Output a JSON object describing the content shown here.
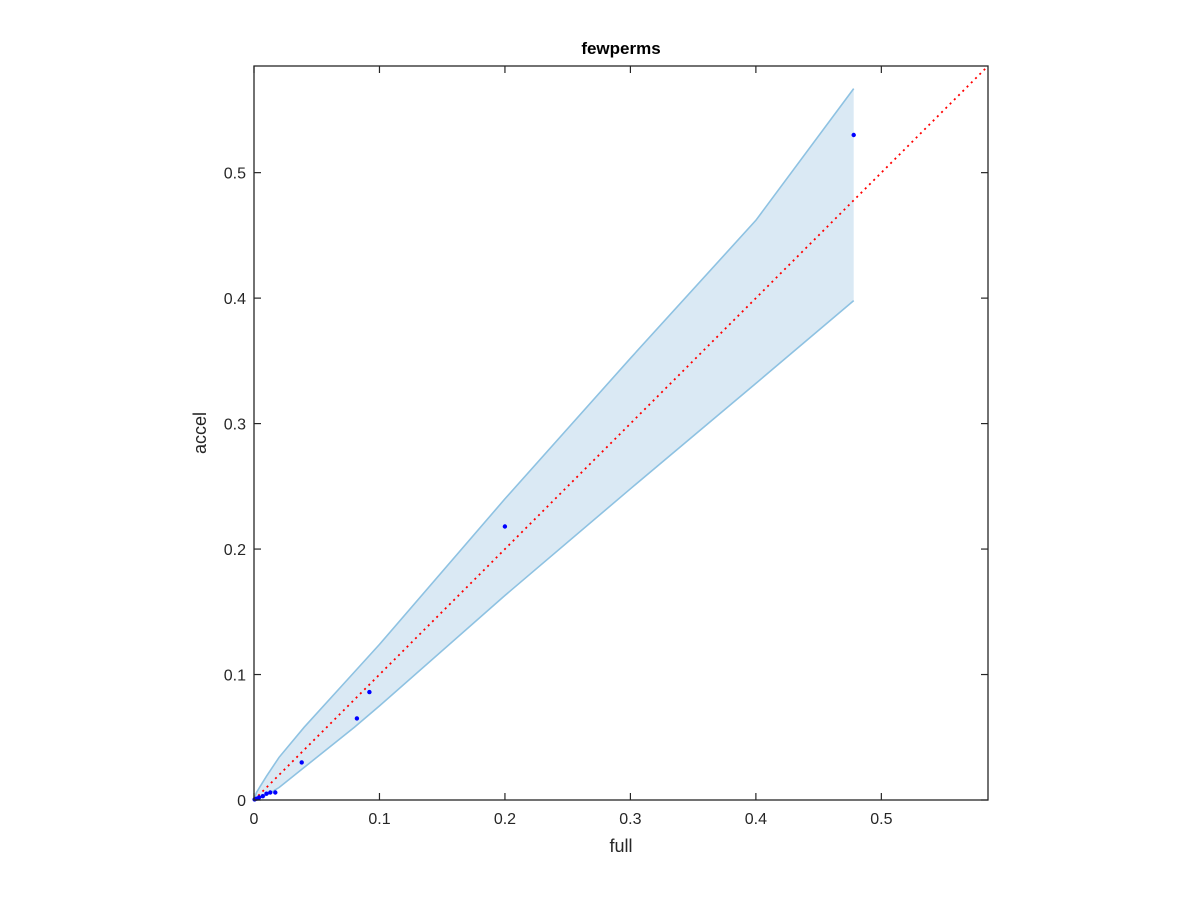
{
  "chart_data": {
    "type": "scatter",
    "title": "fewperms",
    "xlabel": "full",
    "ylabel": "accel",
    "xlim": [
      0,
      0.585
    ],
    "ylim": [
      0,
      0.585
    ],
    "x_ticks": [
      0,
      0.1,
      0.2,
      0.3,
      0.4,
      0.5
    ],
    "x_tick_labels": [
      "0",
      "0.1",
      "0.2",
      "0.3",
      "0.4",
      "0.5"
    ],
    "y_ticks": [
      0,
      0.1,
      0.2,
      0.3,
      0.4,
      0.5
    ],
    "y_tick_labels": [
      "0",
      "0.1",
      "0.2",
      "0.3",
      "0.4",
      "0.5"
    ],
    "grid": false,
    "points": {
      "x": [
        0.0005,
        0.002,
        0.004,
        0.007,
        0.01,
        0.013,
        0.017,
        0.038,
        0.082,
        0.092,
        0.2,
        0.478
      ],
      "y": [
        0.0005,
        0.001,
        0.002,
        0.003,
        0.005,
        0.006,
        0.006,
        0.03,
        0.065,
        0.086,
        0.218,
        0.53
      ],
      "color": "#0000ff"
    },
    "band": {
      "x": [
        0,
        0.002,
        0.005,
        0.01,
        0.02,
        0.04,
        0.08,
        0.1,
        0.2,
        0.3,
        0.4,
        0.478
      ],
      "upper": [
        0,
        0.006,
        0.011,
        0.019,
        0.034,
        0.058,
        0.102,
        0.124,
        0.24,
        0.352,
        0.462,
        0.567
      ],
      "lower": [
        0,
        0.0006,
        0.0018,
        0.004,
        0.01,
        0.026,
        0.058,
        0.075,
        0.163,
        0.248,
        0.332,
        0.398
      ],
      "fill_color": "#dae9f4",
      "line_color": "#8ec2e2"
    },
    "reference_line": {
      "x": [
        0,
        0.585
      ],
      "y": [
        0,
        0.585
      ],
      "color": "#ff0000",
      "style": "dotted"
    }
  }
}
